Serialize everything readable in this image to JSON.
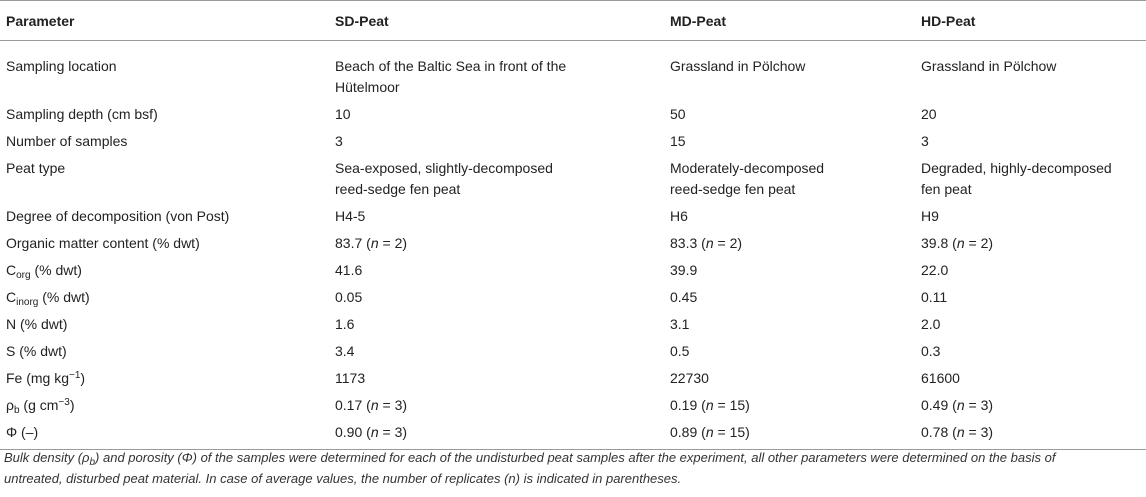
{
  "headers": [
    "Parameter",
    "SD-Peat",
    "MD-Peat",
    "HD-Peat"
  ],
  "rows": [
    {
      "param": "Sampling location",
      "sd": [
        "Beach of the Baltic Sea in front of the",
        "Hütelmoor"
      ],
      "md": [
        "Grassland in Pölchow"
      ],
      "hd": [
        "Grassland in Pölchow"
      ]
    },
    {
      "param": "Sampling depth (cm bsf)",
      "sd": [
        "10"
      ],
      "md": [
        "50"
      ],
      "hd": [
        "20"
      ]
    },
    {
      "param": "Number of samples",
      "sd": [
        "3"
      ],
      "md": [
        "15"
      ],
      "hd": [
        "3"
      ]
    },
    {
      "param": "Peat type",
      "sd": [
        "Sea-exposed, slightly-decomposed",
        "reed-sedge fen peat"
      ],
      "md": [
        "Moderately-decomposed",
        "reed-sedge fen peat"
      ],
      "hd": [
        "Degraded, highly-decomposed",
        "fen peat"
      ]
    },
    {
      "param": "Degree of decomposition (von Post)",
      "sd": [
        "H4-5"
      ],
      "md": [
        "H6"
      ],
      "hd": [
        "H9"
      ]
    },
    {
      "param": "Organic matter content (% dwt)",
      "sd": [
        "83.7 (n = 2)"
      ],
      "md": [
        "83.3 (n = 2)"
      ],
      "hd": [
        "39.8 (n = 2)"
      ]
    },
    {
      "param": "Corg (% dwt)",
      "sd": [
        "41.6"
      ],
      "md": [
        "39.9"
      ],
      "hd": [
        "22.0"
      ]
    },
    {
      "param": "Cinorg (% dwt)",
      "sd": [
        "0.05"
      ],
      "md": [
        "0.45"
      ],
      "hd": [
        "0.11"
      ]
    },
    {
      "param": "N (% dwt)",
      "sd": [
        "1.6"
      ],
      "md": [
        "3.1"
      ],
      "hd": [
        "2.0"
      ]
    },
    {
      "param": "S (% dwt)",
      "sd": [
        "3.4"
      ],
      "md": [
        "0.5"
      ],
      "hd": [
        "0.3"
      ]
    },
    {
      "param": "Fe (mg kg−1)",
      "sd": [
        "1173"
      ],
      "md": [
        "22730"
      ],
      "hd": [
        "61600"
      ]
    },
    {
      "param": "ρb (g cm−3)",
      "sd": [
        "0.17 (n = 3)"
      ],
      "md": [
        "0.19 (n = 15)"
      ],
      "hd": [
        "0.49 (n = 3)"
      ]
    },
    {
      "param": "Φ (–)",
      "sd": [
        "0.90 (n = 3)"
      ],
      "md": [
        "0.89 (n = 15)"
      ],
      "hd": [
        "0.78 (n = 3)"
      ]
    }
  ],
  "note_lines": [
    "Bulk density (ρb) and porosity (Φ) of the samples were determined for each of the undisturbed peat samples after the experiment, all other parameters were determined on the basis of",
    "untreated, disturbed peat material. In case of average values, the number of replicates (n) is indicated in parentheses."
  ]
}
